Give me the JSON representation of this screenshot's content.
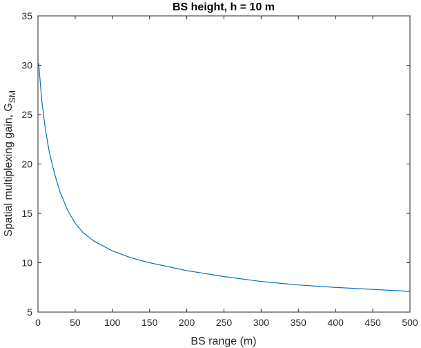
{
  "chart_data": {
    "type": "line",
    "title": "BS height, h = 10 m",
    "xlabel": "BS range (m)",
    "ylabel_main": "Spatial multiplexing gain, G",
    "ylabel_sub": "SM",
    "xlim": [
      0,
      500
    ],
    "ylim": [
      5,
      35
    ],
    "xticks": [
      0,
      50,
      100,
      150,
      200,
      250,
      300,
      350,
      400,
      450,
      500
    ],
    "yticks": [
      5,
      10,
      15,
      20,
      25,
      30,
      35
    ],
    "grid": false,
    "series": [
      {
        "color": "#0072BD",
        "x": [
          1,
          5,
          10,
          15,
          20,
          25,
          30,
          40,
          50,
          60,
          75,
          100,
          125,
          150,
          200,
          250,
          300,
          350,
          400,
          450,
          500
        ],
        "y": [
          30.2,
          26.5,
          23.5,
          21.3,
          19.7,
          18.3,
          17.1,
          15.3,
          14.0,
          13.1,
          12.2,
          11.2,
          10.5,
          10.0,
          9.2,
          8.6,
          8.1,
          7.75,
          7.5,
          7.3,
          7.1
        ]
      }
    ]
  }
}
